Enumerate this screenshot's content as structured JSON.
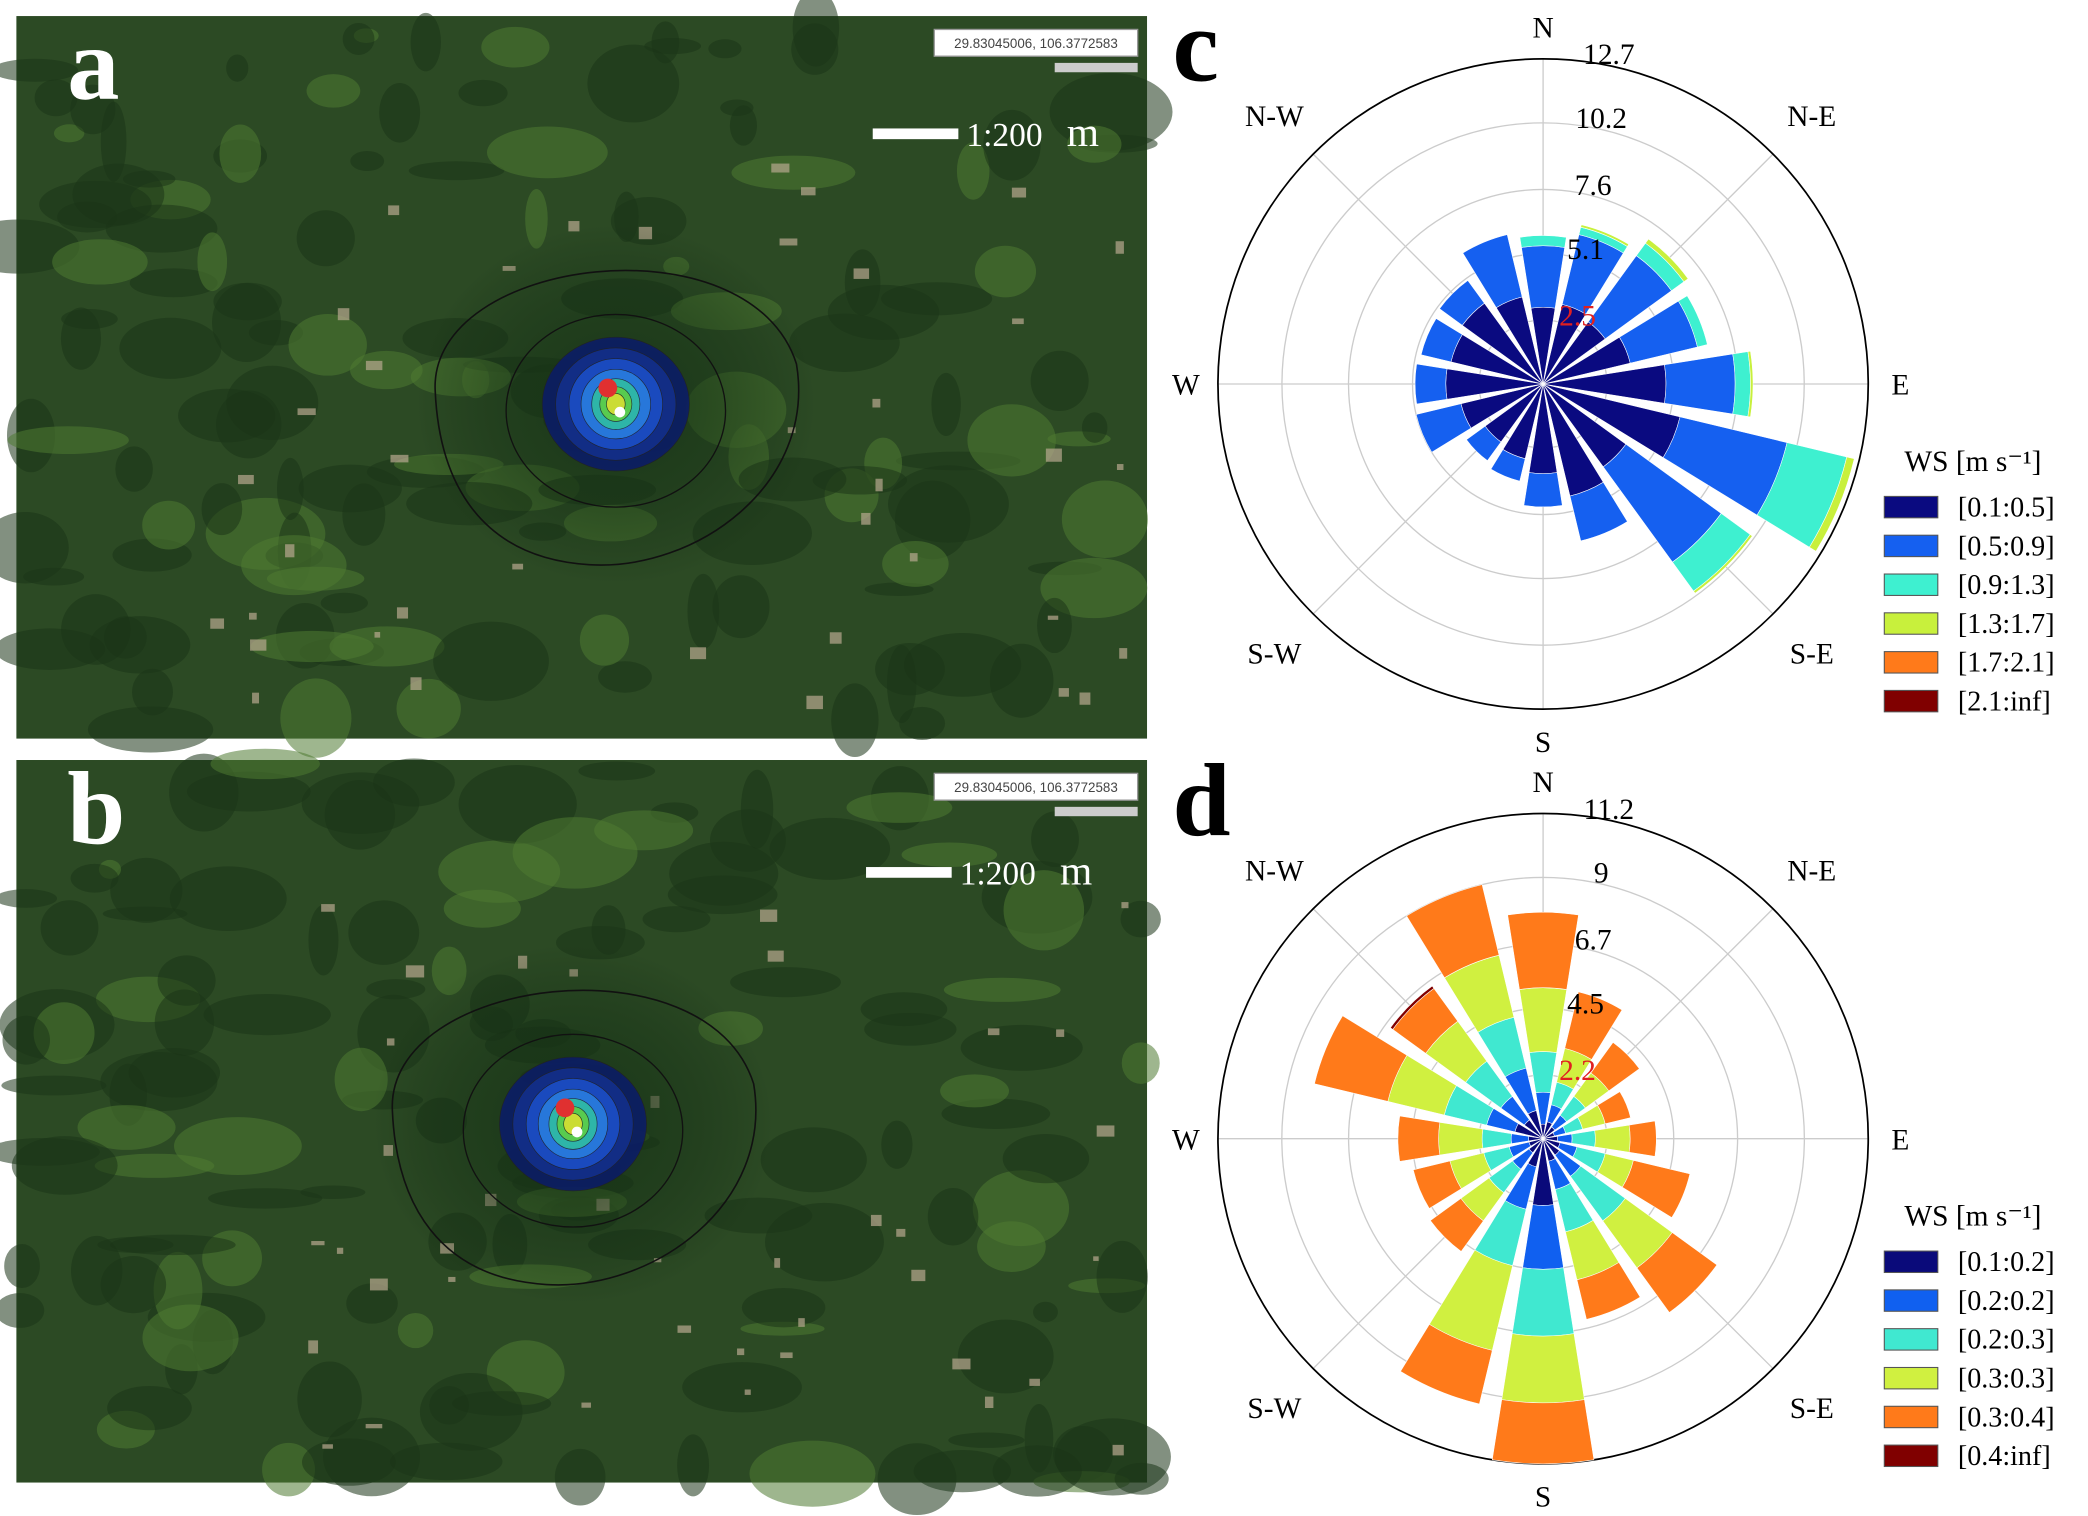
{
  "maps": [
    {
      "label": "a",
      "coordinates": "29.83045006, 106.3772583",
      "scale": "1:200",
      "unit": "m"
    },
    {
      "label": "b",
      "coordinates": "29.83045006, 106.3772583",
      "scale": "1:200",
      "unit": "m"
    }
  ],
  "chart_data": [
    {
      "type": "windrose",
      "panel": "c",
      "categories": [
        "N",
        null,
        "N-E",
        null,
        "E",
        null,
        "S-E",
        null,
        "S",
        null,
        "S-W",
        null,
        "W",
        null,
        "N-W",
        null
      ],
      "rlim": [
        0,
        12.7
      ],
      "rticks": [
        2.5,
        5.1,
        7.6,
        10.2,
        12.7
      ],
      "inner_tick_color": "#e02020",
      "legend_title": "WS [m s⁻¹]",
      "series": [
        {
          "name": "[0.1:0.5]",
          "color": "#0a0a80",
          "values": [
            3.0,
            3.2,
            3.0,
            3.5,
            4.8,
            5.5,
            4.0,
            4.5,
            3.5,
            3.0,
            2.8,
            3.3,
            3.8,
            3.7,
            3.9,
            3.5
          ]
        },
        {
          "name": "[0.5:0.9]",
          "color": "#1560f0",
          "values": [
            2.4,
            2.8,
            3.2,
            2.7,
            2.7,
            4.3,
            4.6,
            1.8,
            1.3,
            0.9,
            0.9,
            1.8,
            1.2,
            1.2,
            1.1,
            2.5
          ]
        },
        {
          "name": "[0.9:1.3]",
          "color": "#3ef0d0",
          "values": [
            0.4,
            0.3,
            0.6,
            0.4,
            0.6,
            2.4,
            1.4,
            0,
            0,
            0,
            0,
            0,
            0,
            0,
            0,
            0
          ]
        },
        {
          "name": "[1.3:1.7]",
          "color": "#c8f03c",
          "values": [
            0,
            0.1,
            0.2,
            0,
            0.1,
            0.3,
            0.1,
            0,
            0,
            0,
            0,
            0,
            0,
            0,
            0,
            0
          ]
        },
        {
          "name": "[1.7:2.1]",
          "color": "#ff7a1a",
          "values": [
            0,
            0,
            0,
            0,
            0,
            0,
            0,
            0,
            0,
            0,
            0,
            0,
            0,
            0,
            0,
            0
          ]
        },
        {
          "name": "[2.1:inf]",
          "color": "#800000",
          "values": [
            0,
            0,
            0,
            0,
            0,
            0,
            0,
            0,
            0,
            0,
            0,
            0,
            0,
            0,
            0,
            0
          ]
        }
      ]
    },
    {
      "type": "windrose",
      "panel": "d",
      "categories": [
        "N",
        null,
        "N-E",
        null,
        "E",
        null,
        "S-E",
        null,
        "S",
        null,
        "S-W",
        null,
        "W",
        null,
        "N-W",
        null
      ],
      "rlim": [
        0,
        11.2
      ],
      "rticks": [
        2.2,
        4.5,
        6.7,
        9.0,
        11.2
      ],
      "inner_tick_color": "#e02020",
      "legend_title": "WS [m s⁻¹]",
      "series": [
        {
          "name": "[0.1:0.2]",
          "color": "#0a0a7a",
          "values": [
            0.5,
            0.6,
            0.5,
            0.4,
            0.5,
            0.6,
            0.7,
            0.8,
            2.3,
            1.0,
            0.6,
            0.5,
            0.5,
            1.0,
            0.8,
            1.0
          ]
        },
        {
          "name": "[0.2:0.2]",
          "color": "#1060f0",
          "values": [
            1.1,
            0.6,
            0.5,
            0.4,
            0.5,
            0.6,
            0.9,
            1.0,
            2.2,
            1.5,
            0.7,
            0.7,
            0.6,
            1.0,
            1.0,
            1.5
          ]
        },
        {
          "name": "[0.2:0.3]",
          "color": "#40e8d0",
          "values": [
            1.4,
            0.8,
            0.8,
            0.6,
            0.8,
            1.0,
            1.9,
            1.5,
            2.3,
            2.0,
            1.0,
            0.9,
            1.0,
            1.5,
            1.5,
            1.8
          ]
        },
        {
          "name": "[0.3:0.3]",
          "color": "#d0f040",
          "values": [
            2.2,
            1.2,
            1.0,
            0.8,
            1.2,
            1.0,
            2.0,
            1.7,
            2.3,
            3.0,
            1.2,
            1.2,
            1.5,
            2.0,
            1.7,
            2.2
          ]
        },
        {
          "name": "[0.3:0.4]",
          "color": "#ff7a1a",
          "values": [
            2.6,
            2.0,
            1.3,
            0.9,
            0.9,
            2.0,
            1.9,
            1.4,
            2.1,
            1.9,
            1.3,
            1.3,
            1.4,
            2.6,
            1.4,
            2.5
          ]
        },
        {
          "name": "[0.4:inf]",
          "color": "#800000",
          "values": [
            0,
            0,
            0,
            0,
            0,
            0,
            0,
            0,
            0,
            0,
            0,
            0,
            0,
            0,
            0.1,
            0
          ]
        }
      ]
    }
  ]
}
